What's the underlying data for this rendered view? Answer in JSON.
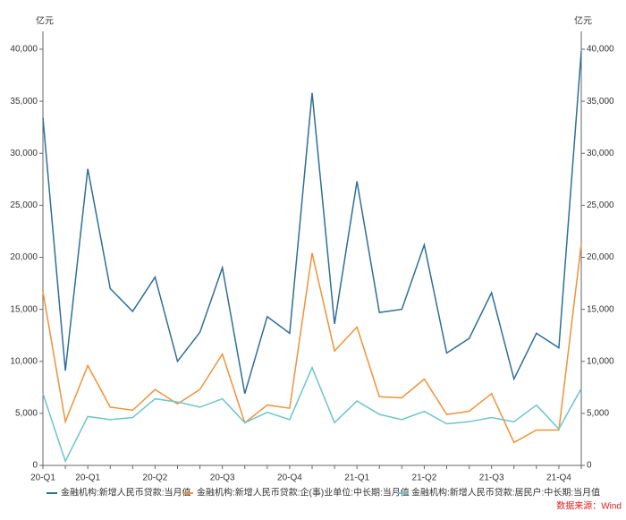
{
  "chart_data": {
    "type": "line",
    "y_unit": "亿元",
    "y2_unit": "亿元",
    "source": "数据来源：Wind",
    "categories": [
      "20-Q1",
      null,
      "20-Q1",
      null,
      null,
      "20-Q2",
      null,
      null,
      "20-Q3",
      null,
      null,
      "20-Q4",
      null,
      null,
      "21-Q1",
      null,
      null,
      "21-Q2",
      null,
      null,
      "21-Q3",
      null,
      null,
      "21-Q4",
      null
    ],
    "ylim": [
      0,
      40000
    ],
    "yticks": [
      0,
      {
        "value": 5000,
        "label": "5,000"
      },
      {
        "value": 10000,
        "label": "10,000"
      },
      {
        "value": 15000,
        "label": "15,000"
      },
      {
        "value": 20000,
        "label": "20,000"
      },
      {
        "value": 25000,
        "label": "25,000"
      },
      {
        "value": 30000,
        "label": "30,000"
      },
      {
        "value": 35000,
        "label": "35,000"
      },
      {
        "value": 40000,
        "label": "40,000"
      }
    ],
    "y2lim": [
      0,
      40000
    ],
    "y2ticks": [
      0,
      {
        "value": 5000,
        "label": "5,000"
      },
      {
        "value": 10000,
        "label": "10,000"
      },
      {
        "value": 15000,
        "label": "15,000"
      },
      {
        "value": 20000,
        "label": "20,000"
      },
      {
        "value": 25000,
        "label": "25,000"
      },
      {
        "value": 30000,
        "label": "30,000"
      },
      {
        "value": 35000,
        "label": "35,000"
      },
      {
        "value": 40000,
        "label": "40,000"
      }
    ],
    "series": [
      {
        "name": "金融机构:新增人民币贷款:当月值",
        "color": "#2e6f97",
        "values": [
          33400,
          9100,
          28500,
          17000,
          14800,
          18100,
          10000,
          12800,
          19000,
          6900,
          14300,
          12700,
          35800,
          13600,
          27300,
          14700,
          15000,
          21200,
          10800,
          12200,
          16600,
          8300,
          12700,
          11300,
          39800
        ]
      },
      {
        "name": "金融机构:新增人民币贷款:企(事)业单位:中长期:当月值",
        "color": "#f0923a",
        "values": [
          16700,
          4200,
          9600,
          5600,
          5300,
          7300,
          5900,
          7300,
          10700,
          4100,
          5800,
          5500,
          20400,
          11000,
          13300,
          6600,
          6500,
          8300,
          4900,
          5200,
          6900,
          2200,
          3400,
          3400,
          21300
        ]
      },
      {
        "name": "金融机构:新增人民币贷款:居民户:中长期:当月值",
        "color": "#6cc5c9",
        "values": [
          6900,
          400,
          4700,
          4400,
          4600,
          6400,
          6100,
          5600,
          6400,
          4100,
          5100,
          4400,
          9400,
          4100,
          6200,
          4900,
          4400,
          5200,
          4000,
          4200,
          4600,
          4200,
          5800,
          3500,
          7400
        ]
      }
    ]
  }
}
